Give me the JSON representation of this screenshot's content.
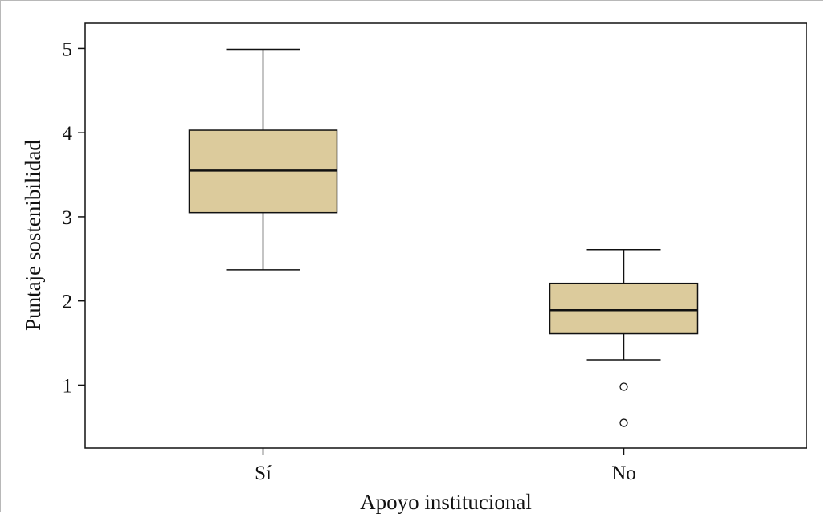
{
  "chart_data": {
    "type": "box",
    "xlabel": "Apoyo institucional",
    "ylabel": "Puntaje sostenibilidad",
    "ylim": [
      0.25,
      5.3
    ],
    "yticks": [
      1,
      2,
      3,
      4,
      5
    ],
    "categories": [
      "Sí",
      "No"
    ],
    "boxes": [
      {
        "category": "Sí",
        "whisker_low": 2.37,
        "q1": 3.05,
        "median": 3.55,
        "q3": 4.03,
        "whisker_high": 4.99,
        "outliers": []
      },
      {
        "category": "No",
        "whisker_low": 1.3,
        "q1": 1.61,
        "median": 1.89,
        "q3": 2.21,
        "whisker_high": 2.61,
        "outliers": [
          0.98,
          0.55
        ]
      }
    ],
    "legend": "none",
    "grid": false
  },
  "colors": {
    "box_fill": "#dccb9c",
    "stroke": "#111111",
    "outlier_fill": "#ffffff"
  }
}
